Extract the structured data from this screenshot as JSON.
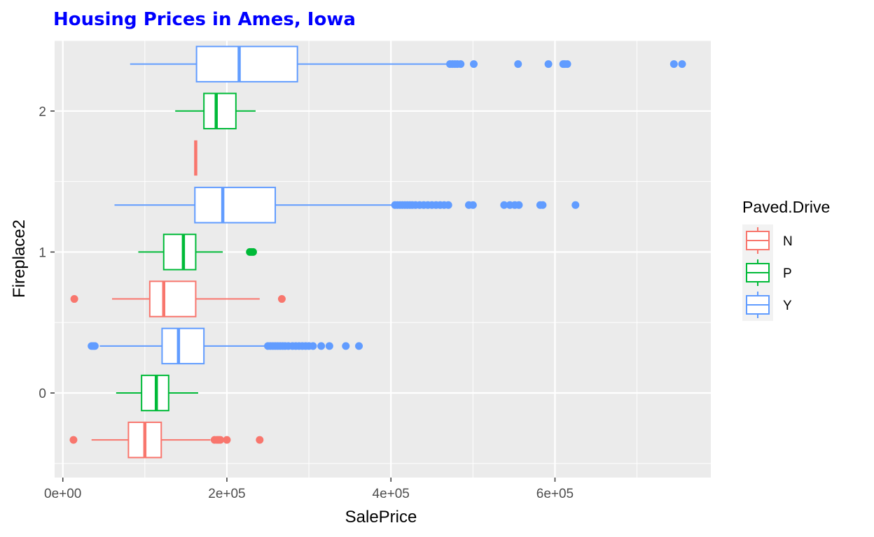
{
  "chart_data": {
    "type": "boxplot",
    "title": "Housing Prices in Ames, Iowa",
    "xlabel": "SalePrice",
    "ylabel": "Fireplace2",
    "xlim": [
      -10000,
      790000
    ],
    "ylim": [
      -0.6,
      2.5
    ],
    "x_ticks": [
      {
        "value": 0,
        "label": "0e+00"
      },
      {
        "value": 200000,
        "label": "2e+05"
      },
      {
        "value": 400000,
        "label": "4e+05"
      },
      {
        "value": 600000,
        "label": "6e+05"
      }
    ],
    "y_ticks": [
      {
        "value": 0,
        "label": "0"
      },
      {
        "value": 1,
        "label": "1"
      },
      {
        "value": 2,
        "label": "2"
      }
    ],
    "legend": {
      "title": "Paved.Drive",
      "position": "right",
      "entries": [
        {
          "label": "N",
          "color": "#F8766D"
        },
        {
          "label": "P",
          "color": "#00BA38"
        },
        {
          "label": "Y",
          "color": "#619CFF"
        }
      ]
    },
    "colors": {
      "N": "#F8766D",
      "P": "#00BA38",
      "Y": "#619CFF",
      "panel": "#EBEBEB",
      "grid": "#FFFFFF",
      "title": "#0000FF"
    },
    "boxes": [
      {
        "group": 0,
        "drive": "N",
        "y": -0.333,
        "lower_whisker": 35000,
        "q1": 80000,
        "median": 100000,
        "q3": 120000,
        "upper_whisker": 180000,
        "outliers": [
          13000,
          185000,
          188000,
          190000,
          192000,
          200000,
          240000
        ]
      },
      {
        "group": 0,
        "drive": "P",
        "y": 0.0,
        "lower_whisker": 65000,
        "q1": 96000,
        "median": 114000,
        "q3": 129000,
        "upper_whisker": 165000,
        "outliers": []
      },
      {
        "group": 0,
        "drive": "Y",
        "y": 0.333,
        "lower_whisker": 45000,
        "q1": 121000,
        "median": 141000,
        "q3": 172000,
        "upper_whisker": 248000,
        "outliers": [
          35000,
          37000,
          39000,
          250000,
          253000,
          256000,
          259000,
          262000,
          265000,
          268000,
          271000,
          275000,
          280000,
          284000,
          288000,
          292000,
          296000,
          300000,
          305000,
          315000,
          325000,
          345000,
          361000
        ]
      },
      {
        "group": 1,
        "drive": "N",
        "y": 0.667,
        "lower_whisker": 60000,
        "q1": 106000,
        "median": 123000,
        "q3": 162000,
        "upper_whisker": 240000,
        "outliers": [
          14000,
          267000
        ]
      },
      {
        "group": 1,
        "drive": "P",
        "y": 1.0,
        "lower_whisker": 92000,
        "q1": 123000,
        "median": 147000,
        "q3": 162000,
        "upper_whisker": 195000,
        "outliers": [
          228000,
          230000,
          232000
        ]
      },
      {
        "group": 1,
        "drive": "Y",
        "y": 1.333,
        "lower_whisker": 63000,
        "q1": 161000,
        "median": 195000,
        "q3": 259000,
        "upper_whisker": 403000,
        "outliers": [
          405000,
          408000,
          411000,
          414000,
          417000,
          420000,
          423000,
          426000,
          430000,
          435000,
          440000,
          445000,
          450000,
          455000,
          460000,
          465000,
          470000,
          495000,
          500000,
          538000,
          545000,
          551000,
          556000,
          582000,
          585000,
          625000
        ]
      },
      {
        "group": 2,
        "drive": "N",
        "y": 1.667,
        "lower_whisker": 162000,
        "q1": 162000,
        "median": 162000,
        "q3": 162000,
        "upper_whisker": 162000,
        "outliers": []
      },
      {
        "group": 2,
        "drive": "P",
        "y": 2.0,
        "lower_whisker": 137000,
        "q1": 172000,
        "median": 187000,
        "q3": 211000,
        "upper_whisker": 235000,
        "outliers": []
      },
      {
        "group": 2,
        "drive": "Y",
        "y": 2.333,
        "lower_whisker": 82000,
        "q1": 163000,
        "median": 215000,
        "q3": 286000,
        "upper_whisker": 468000,
        "outliers": [
          472000,
          475000,
          478000,
          481000,
          485000,
          501000,
          555000,
          592000,
          610000,
          612000,
          615000,
          745000,
          755000
        ]
      }
    ]
  }
}
